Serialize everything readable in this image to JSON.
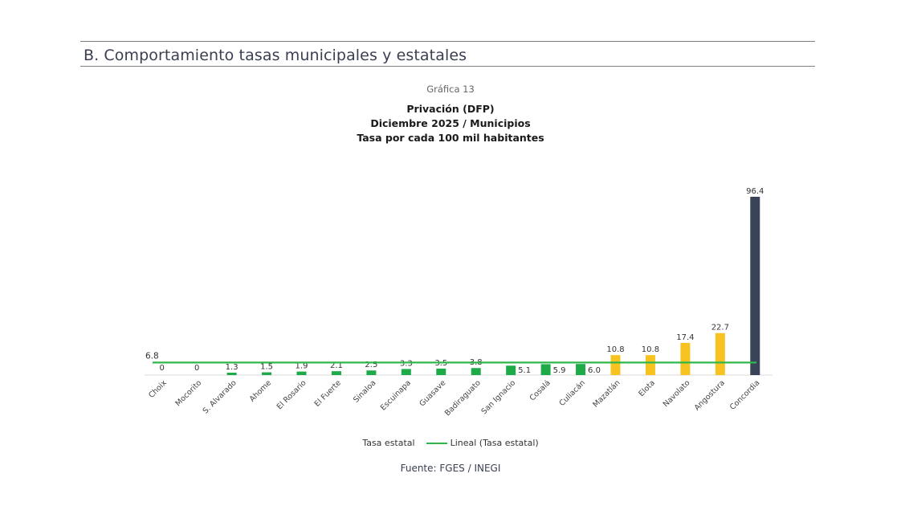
{
  "section_title": "B. Comportamiento tasas municipales y estatales",
  "chart_caption": "Gráfica 13",
  "chart_title_lines": [
    "Privación (DFP)",
    "Diciembre 2025 / Municipios",
    "Tasa por cada 100 mil habitantes"
  ],
  "legend": {
    "series_label": "Tasa estatal",
    "line_label": "Lineal (Tasa estatal)"
  },
  "source": "Fuente: FGES / INEGI",
  "colors": {
    "green": "#1faa4a",
    "yellow": "#f7c320",
    "navy": "#3a4459",
    "line": "#2eb84b"
  },
  "chart_data": {
    "type": "bar",
    "title": "Privación (DFP)",
    "categories": [
      "Choix",
      "Mocorito",
      "S. Alvarado",
      "Ahome",
      "El Rosario",
      "El Fuerte",
      "Sinaloa",
      "Escuinapa",
      "Guasave",
      "Badiraguato",
      "San Ignacio",
      "Cosalá",
      "Culiacán",
      "Mazatlán",
      "Elota",
      "Navolato",
      "Angostura",
      "Concordia"
    ],
    "values": [
      0,
      0,
      1.3,
      1.5,
      1.9,
      2.1,
      2.5,
      3.3,
      3.5,
      3.8,
      5.1,
      5.9,
      6.0,
      10.8,
      10.8,
      17.4,
      22.7,
      96.4
    ],
    "value_labels": [
      "0",
      "0",
      "1.3",
      "1.5",
      "1.9",
      "2.1",
      "2.5",
      "3.3",
      "3.5",
      "3.8",
      "5.1",
      "5.9",
      "6.0",
      "10.8",
      "10.8",
      "17.4",
      "22.7",
      "96.4"
    ],
    "bar_colors": [
      "green",
      "green",
      "green",
      "green",
      "green",
      "green",
      "green",
      "green",
      "green",
      "green",
      "green",
      "green",
      "green",
      "yellow",
      "yellow",
      "yellow",
      "yellow",
      "navy"
    ],
    "reference_line": {
      "name": "Lineal (Tasa estatal)",
      "value": 6.8,
      "label": "6.8"
    },
    "ylim": [
      0,
      96.4
    ],
    "grid": false,
    "legend_position": "bottom"
  }
}
